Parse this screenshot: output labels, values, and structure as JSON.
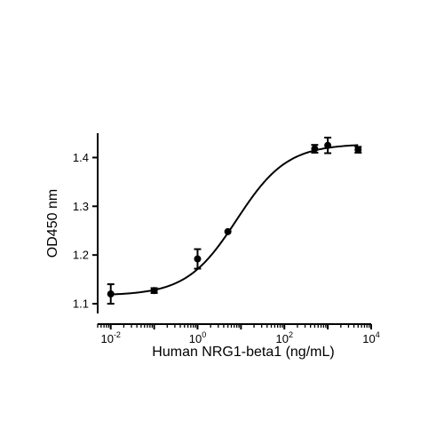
{
  "chart_data": {
    "type": "scatter",
    "title": "",
    "xlabel": "Human NRG1-beta1 (ng/mL)",
    "ylabel": "OD450 nm",
    "x_scale": "log",
    "xlim": [
      0.005,
      10000
    ],
    "ylim": [
      1.08,
      1.45
    ],
    "x_ticks": [
      {
        "value": 0.01,
        "base": "10",
        "exp": "-2"
      },
      {
        "value": 1,
        "base": "10",
        "exp": "0"
      },
      {
        "value": 100,
        "base": "10",
        "exp": "2"
      },
      {
        "value": 10000,
        "base": "10",
        "exp": "4"
      }
    ],
    "y_ticks": [
      {
        "value": 1.1,
        "label": "1.1"
      },
      {
        "value": 1.2,
        "label": "1.2"
      },
      {
        "value": 1.3,
        "label": "1.3"
      },
      {
        "value": 1.4,
        "label": "1.4"
      }
    ],
    "grid": false,
    "legend": "none",
    "series": [
      {
        "points": [
          {
            "x": 0.01,
            "y": 1.12,
            "err": 0.02
          },
          {
            "x": 0.1,
            "y": 1.127,
            "err": 0.005
          },
          {
            "x": 1,
            "y": 1.192,
            "err": 0.02
          },
          {
            "x": 5,
            "y": 1.248,
            "err": 0
          },
          {
            "x": 500,
            "y": 1.418,
            "err": 0.008
          },
          {
            "x": 1000,
            "y": 1.425,
            "err": 0.016
          },
          {
            "x": 5000,
            "y": 1.416,
            "err": 0.006
          }
        ],
        "fit": {
          "model": "4PL",
          "bottom": 1.117,
          "top": 1.428,
          "ec50": 8,
          "hill": 0.75
        }
      }
    ]
  }
}
